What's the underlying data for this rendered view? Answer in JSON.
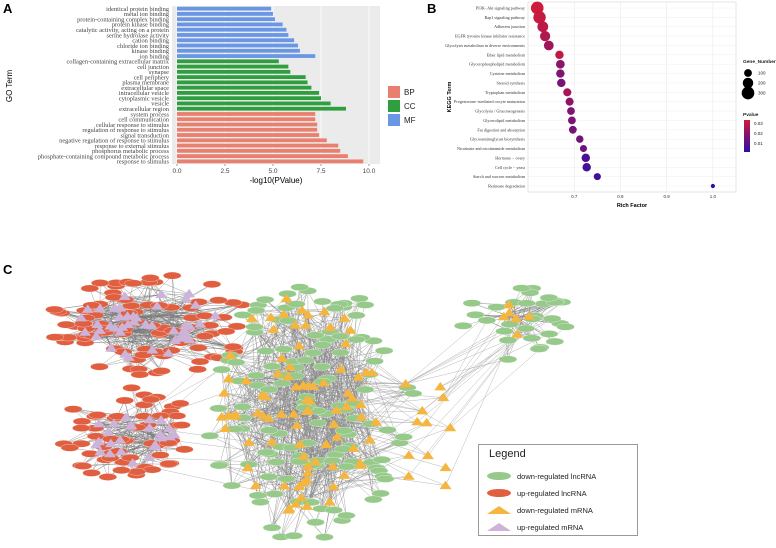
{
  "panels": {
    "a": "A",
    "b": "B",
    "c": "C"
  },
  "chart_data": [
    {
      "type": "bar",
      "orientation": "horizontal",
      "ylabel": "GO Term",
      "xlabel": "-log10(PValue)",
      "xlim": [
        0,
        10
      ],
      "xticks": [
        "0.0",
        "2.5",
        "5.0",
        "7.5",
        "10.0"
      ],
      "grid": true,
      "legend_position": "right",
      "legend": [
        {
          "name": "BP",
          "color": "#e9806f"
        },
        {
          "name": "CC",
          "color": "#2e9e3f"
        },
        {
          "name": "MF",
          "color": "#6a96e6"
        }
      ],
      "terms": [
        {
          "label": "identical protein binding",
          "value": 4.9,
          "group": "MF"
        },
        {
          "label": "metal ion binding",
          "value": 5.0,
          "group": "MF"
        },
        {
          "label": "protein-containing complex binding",
          "value": 5.1,
          "group": "MF"
        },
        {
          "label": "protein kinase binding",
          "value": 5.5,
          "group": "MF"
        },
        {
          "label": "catalytic activity, acting on a protein",
          "value": 5.7,
          "group": "MF"
        },
        {
          "label": "serine hydrolase activity",
          "value": 5.8,
          "group": "MF"
        },
        {
          "label": "cation binding",
          "value": 6.1,
          "group": "MF"
        },
        {
          "label": "chloride ion binding",
          "value": 6.3,
          "group": "MF"
        },
        {
          "label": "kinase binding",
          "value": 6.4,
          "group": "MF"
        },
        {
          "label": "ion binding",
          "value": 7.2,
          "group": "MF"
        },
        {
          "label": "collagen-containing extracellular matrix",
          "value": 5.3,
          "group": "CC"
        },
        {
          "label": "cell junction",
          "value": 5.8,
          "group": "CC"
        },
        {
          "label": "synapse",
          "value": 5.9,
          "group": "CC"
        },
        {
          "label": "cell periphery",
          "value": 6.7,
          "group": "CC"
        },
        {
          "label": "plasma membrane",
          "value": 6.8,
          "group": "CC"
        },
        {
          "label": "extracellular space",
          "value": 7.0,
          "group": "CC"
        },
        {
          "label": "intracellular vesicle",
          "value": 7.4,
          "group": "CC"
        },
        {
          "label": "cytoplasmic vesicle",
          "value": 7.5,
          "group": "CC"
        },
        {
          "label": "vesicle",
          "value": 8.0,
          "group": "CC"
        },
        {
          "label": "extracellular region",
          "value": 8.8,
          "group": "CC"
        },
        {
          "label": "system process",
          "value": 7.2,
          "group": "BP"
        },
        {
          "label": "cell communication",
          "value": 7.2,
          "group": "BP"
        },
        {
          "label": "cellular response to stimulus",
          "value": 7.3,
          "group": "BP"
        },
        {
          "label": "regulation of response to stimulus",
          "value": 7.3,
          "group": "BP"
        },
        {
          "label": "signal transduction",
          "value": 7.4,
          "group": "BP"
        },
        {
          "label": "negative regulation of response to stimulus",
          "value": 7.8,
          "group": "BP"
        },
        {
          "label": "response to external stimulus",
          "value": 8.4,
          "group": "BP"
        },
        {
          "label": "phosphorus metabolic process",
          "value": 8.5,
          "group": "BP"
        },
        {
          "label": "phosphate-containing compound metabolic process",
          "value": 8.9,
          "group": "BP"
        },
        {
          "label": "response to stimulus",
          "value": 9.7,
          "group": "BP"
        }
      ]
    },
    {
      "type": "scatter",
      "ylabel": "KEGG Term",
      "xlabel": "Rich Factor",
      "xlim": [
        0.6,
        1.05
      ],
      "xticks": [
        {
          "label": "0.7",
          "value": 0.7
        },
        {
          "label": "0.8",
          "value": 0.8
        },
        {
          "label": "0.9",
          "value": 0.9
        },
        {
          "label": "1.0",
          "value": 1.0
        }
      ],
      "grid": true,
      "legend_position": "right",
      "size_legend": {
        "title": "Gene_Number",
        "items": [
          {
            "label": "100",
            "size": 100
          },
          {
            "label": "200",
            "size": 200
          },
          {
            "label": "300",
            "size": 300
          }
        ]
      },
      "color_legend": {
        "title": "Pvalue",
        "items": [
          "0.03",
          "0.02",
          "0.01"
        ],
        "low_color": "#cf1a3a",
        "high_color": "#2c0fa8"
      },
      "terms": [
        {
          "label": "PI3K−Akt signaling pathway",
          "x": 0.62,
          "genes": 300,
          "p": 0.036
        },
        {
          "label": "Rap1 signaling pathway",
          "x": 0.625,
          "genes": 290,
          "p": 0.034
        },
        {
          "label": "Adherens junction",
          "x": 0.632,
          "genes": 210,
          "p": 0.032
        },
        {
          "label": "EGFR tyrosine kinase inhibitor resistance",
          "x": 0.637,
          "genes": 190,
          "p": 0.03
        },
        {
          "label": "Glycolysis metabolism in diverse environments",
          "x": 0.645,
          "genes": 170,
          "p": 0.026
        },
        {
          "label": "Ether lipid metabolism",
          "x": 0.668,
          "genes": 120,
          "p": 0.033
        },
        {
          "label": "Glycerophospholipid metabolism",
          "x": 0.67,
          "genes": 130,
          "p": 0.022
        },
        {
          "label": "Cysteine metabolism",
          "x": 0.67,
          "genes": 120,
          "p": 0.02
        },
        {
          "label": "Steroid synthesis",
          "x": 0.672,
          "genes": 120,
          "p": 0.018
        },
        {
          "label": "Tryptophan metabolism",
          "x": 0.685,
          "genes": 110,
          "p": 0.028
        },
        {
          "label": "Progesterone−mediated oocyte maturation",
          "x": 0.69,
          "genes": 110,
          "p": 0.022
        },
        {
          "label": "Glycolysis / Gluconeogenesis",
          "x": 0.693,
          "genes": 100,
          "p": 0.02
        },
        {
          "label": "Glycerolipid metabolism",
          "x": 0.695,
          "genes": 100,
          "p": 0.019
        },
        {
          "label": "Fat digestion and absorption",
          "x": 0.697,
          "genes": 100,
          "p": 0.018
        },
        {
          "label": "Glycosaminoglycan biosynthesis",
          "x": 0.712,
          "genes": 90,
          "p": 0.017
        },
        {
          "label": "Nicotinate and nicotinamide metabolism",
          "x": 0.72,
          "genes": 80,
          "p": 0.016
        },
        {
          "label": "Hormone − ovary",
          "x": 0.725,
          "genes": 120,
          "p": 0.009
        },
        {
          "label": "Cell cycle − yeast",
          "x": 0.727,
          "genes": 120,
          "p": 0.008
        },
        {
          "label": "Starch and sucrose metabolism",
          "x": 0.75,
          "genes": 80,
          "p": 0.007
        },
        {
          "label": "Retinoate degradation",
          "x": 1.0,
          "genes": 20,
          "p": 0.003
        }
      ]
    }
  ],
  "network": {
    "legend_title": "Legend",
    "legend": [
      {
        "name": "down-regulated lncRNA",
        "color": "#96c98a",
        "shape": "ellipse"
      },
      {
        "name": "up-regulated lncRNA",
        "color": "#e05f40",
        "shape": "ellipse"
      },
      {
        "name": "down-regulated mRNA",
        "color": "#f4b63f",
        "shape": "triangle"
      },
      {
        "name": "up-regulated mRNA",
        "color": "#cdb3d8",
        "shape": "triangle"
      }
    ]
  }
}
